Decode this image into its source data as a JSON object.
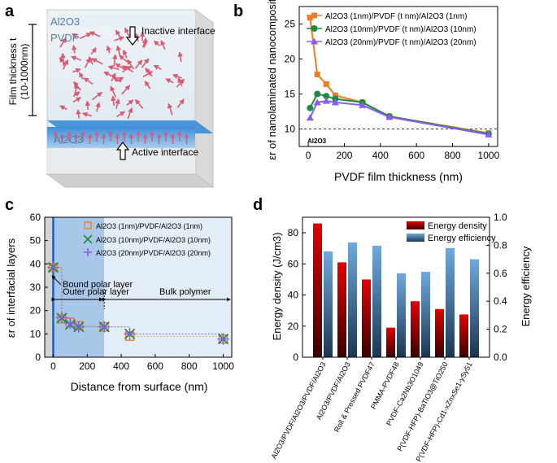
{
  "colors": {
    "orange": "#f07b27",
    "green": "#1e8a44",
    "purple": "#8a5cf0",
    "red": "#dd0000",
    "blue": "#5b9bd5",
    "dark_blue": "#1f4e79",
    "gray_region": "#d4d4d4",
    "outer_region": "#a9c7e8",
    "bulk_region": "#e3edf8"
  },
  "panel_a": {
    "label": "a",
    "top_layer": "Al2O3",
    "film": "PVDF",
    "bottom_layer": "Al2O3",
    "inactive": "Inactive interface",
    "active": "Active interface",
    "thickness_line1": "Film thickness t",
    "thickness_line2": "(10-1000nm)"
  },
  "panel_labels": {
    "b": "b",
    "c": "c",
    "d": "d"
  },
  "chart_data": [
    {
      "id": "b",
      "type": "line",
      "xlabel": "PVDF film thickness (nm)",
      "ylabel": "εr of nanolaminated nanocomposite",
      "xlim": [
        -50,
        1050
      ],
      "ylim": [
        7.5,
        27.5
      ],
      "xticks": [
        0,
        200,
        400,
        600,
        800,
        1000
      ],
      "yticks": [
        10,
        15,
        20,
        25
      ],
      "reference_line": {
        "y": 10,
        "label": "Al2O3"
      },
      "series": [
        {
          "name": "Al2O3 (1nm)/PVDF (t nm)/Al2O3 (1nm)",
          "marker": "square",
          "color": "#f07b27",
          "x": [
            10,
            50,
            100,
            150,
            300,
            450,
            1000
          ],
          "y": [
            25.9,
            17.8,
            16.4,
            14.8,
            13.8,
            11.8,
            9.4
          ]
        },
        {
          "name": "Al2O3 (10nm)/PVDF (t nm)/Al2O3 (10nm)",
          "marker": "circle",
          "color": "#1e8a44",
          "x": [
            10,
            50,
            100,
            150,
            300,
            450,
            1000
          ],
          "y": [
            13.0,
            15.0,
            14.7,
            14.3,
            13.8,
            11.8,
            9.3
          ]
        },
        {
          "name": "Al2O3 (20nm)/PVDF (t nm)/Al2O3 (20nm)",
          "marker": "triangle",
          "color": "#8a5cf0",
          "x": [
            10,
            50,
            100,
            150,
            300,
            450,
            1000
          ],
          "y": [
            11.6,
            13.8,
            14.0,
            13.8,
            13.4,
            11.7,
            9.2
          ]
        }
      ]
    },
    {
      "id": "c",
      "type": "scatter",
      "xlabel": "Distance from surface  (nm)",
      "ylabel": "εr of interfacial layers",
      "xlim": [
        -50,
        1050
      ],
      "ylim": [
        0,
        60
      ],
      "xticks": [
        0,
        200,
        400,
        600,
        800,
        1000
      ],
      "yticks": [
        0,
        10,
        20,
        30,
        40,
        50,
        60
      ],
      "regions": {
        "bound": "Bound polar layer",
        "outer": "Outer polar layer",
        "bulk": "Bulk polymer",
        "outer_end": 300
      },
      "series": [
        {
          "name": "Al2O3 (1nm)/PVDF/Al2O3 (1nm)",
          "marker": "open-square",
          "color": "#f07b27",
          "x": [
            0,
            50,
            100,
            150,
            300,
            450,
            1000
          ],
          "y": [
            38.5,
            16.5,
            15.0,
            13.5,
            13.0,
            9.0,
            7.8
          ]
        },
        {
          "name": "Al2O3 (10nm)/PVDF/Al2O3 (10nm)",
          "marker": "x",
          "color": "#1e8a44",
          "x": [
            0,
            50,
            100,
            150,
            300,
            450,
            1000
          ],
          "y": [
            38.5,
            16.8,
            14.0,
            13.0,
            13.0,
            10.0,
            7.8
          ]
        },
        {
          "name": "Al2O3 (20nm)/PVDF/Al2O3 (20nm)",
          "marker": "plus",
          "color": "#8a5cf0",
          "x": [
            0,
            50,
            100,
            150,
            300,
            450,
            1000
          ],
          "y": [
            38.5,
            17.0,
            14.5,
            13.0,
            13.0,
            10.0,
            7.8
          ]
        }
      ]
    },
    {
      "id": "d",
      "type": "bar",
      "ylabel": "Energy density (J/cm3)",
      "y2label": "Energy efficiency",
      "ylim": [
        0,
        90
      ],
      "y2lim": [
        0,
        1.0
      ],
      "yticks": [
        0,
        20,
        40,
        60,
        80
      ],
      "y2ticks": [
        0.0,
        0.2,
        0.4,
        0.6,
        0.8,
        1.0
      ],
      "categories": [
        "Al2O3/PVDF/Al2O3/PVDF/Al2O3",
        "Al2O3/PVDF/Al2O3",
        "Roll & Pressed PVDF47",
        "PMMA-PVDF48",
        "PVDF-Ca2Nb3O1049",
        "P(VDF-HFP)-BaTiO3@TiO250",
        "P(VDF-HFP)-Cd1-xZnxSe1-ySy51"
      ],
      "series": [
        {
          "name": "Energy density",
          "axis": "left",
          "color": "#dd0000",
          "values": [
            86,
            61,
            50,
            19,
            36,
            31,
            27.5
          ]
        },
        {
          "name": "Energy efficiency",
          "axis": "right",
          "color": "#5b9bd5",
          "values": [
            0.756,
            0.82,
            0.797,
            0.6,
            0.61,
            0.78,
            0.7
          ]
        }
      ]
    }
  ]
}
